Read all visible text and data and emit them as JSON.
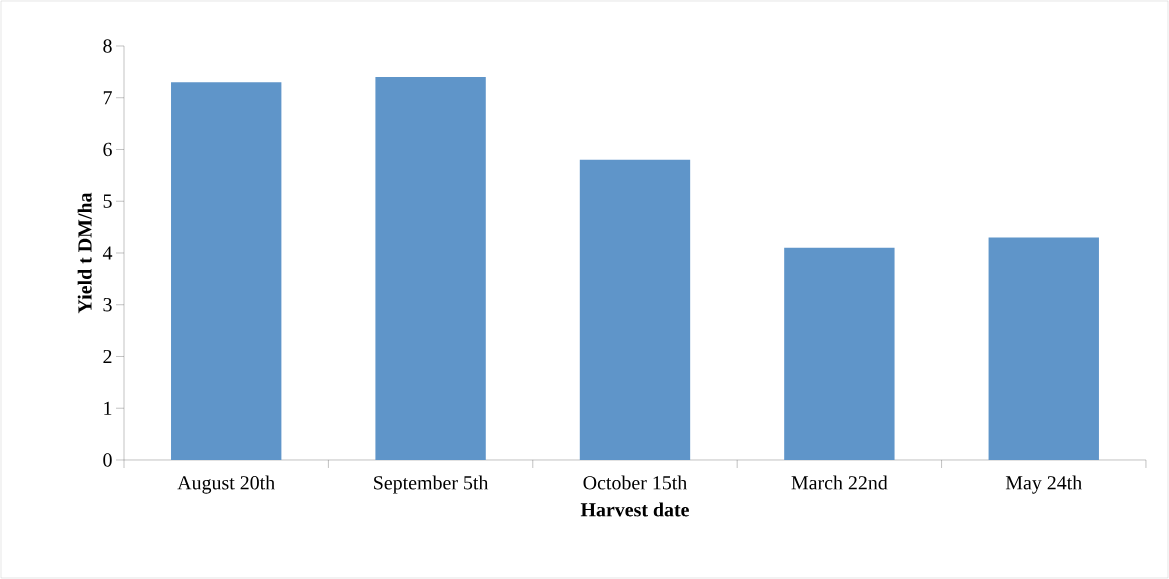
{
  "chart_data": {
    "type": "bar",
    "xlabel": "Harvest date",
    "ylabel": "Yield t DM/ha",
    "categories": [
      "August 20th",
      "September 5th",
      "October 15th",
      "March 22nd",
      "May 24th"
    ],
    "values": [
      7.3,
      7.4,
      5.8,
      4.1,
      4.3
    ],
    "color": "#5f95c9",
    "ylim": [
      0,
      8
    ],
    "yticks": [
      0,
      1,
      2,
      3,
      4,
      5,
      6,
      7,
      8
    ],
    "grid": false
  }
}
